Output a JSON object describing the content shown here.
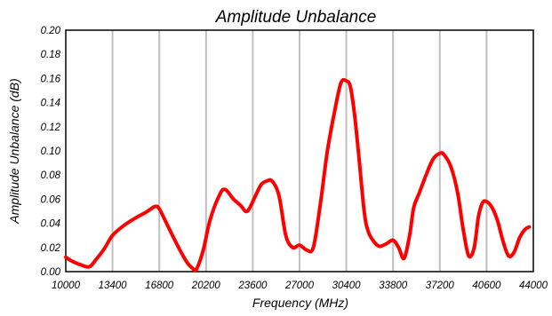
{
  "chart_data": {
    "type": "line",
    "title": "Amplitude Unbalance",
    "xlabel": "Frequency (MHz)",
    "ylabel": "Amplitude Unbalance (dB)",
    "xlim": [
      10000,
      44000
    ],
    "ylim": [
      0,
      0.2
    ],
    "x_ticks": [
      "10000",
      "13400",
      "16800",
      "20200",
      "23600",
      "27000",
      "30400",
      "33800",
      "37200",
      "40600",
      "44000"
    ],
    "y_ticks": [
      "0.00",
      "0.02",
      "0.04",
      "0.06",
      "0.08",
      "0.10",
      "0.12",
      "0.14",
      "0.16",
      "0.18",
      "0.20"
    ],
    "grid": "vertical",
    "legend": "none",
    "colors": {
      "line": "#ff0000",
      "grid": "#c0c0c0",
      "frame": "#000000"
    },
    "series": [
      {
        "x": [
          10000,
          10400,
          11000,
          11700,
          12200,
          12800,
          13400,
          14200,
          15000,
          15800,
          16200,
          16500,
          16800,
          17500,
          18200,
          18800,
          19200,
          19500,
          20000,
          20500,
          21200,
          21600,
          22200,
          22700,
          23200,
          23800,
          24200,
          24600,
          25000,
          25500,
          26000,
          26500,
          27000,
          27500,
          28000,
          28500,
          29000,
          29500,
          30000,
          30400,
          30700,
          31000,
          31300,
          31700,
          32000,
          32400,
          32800,
          33300,
          33800,
          34200,
          34600,
          35000,
          35300,
          35700,
          36200,
          36700,
          37200,
          37500,
          38000,
          38500,
          38900,
          39300,
          39700,
          40000,
          40300,
          40600,
          41000,
          41400,
          41800,
          42200,
          42600,
          43000,
          43400,
          43700
        ],
        "y": [
          0.012,
          0.009,
          0.006,
          0.004,
          0.01,
          0.019,
          0.03,
          0.038,
          0.044,
          0.049,
          0.052,
          0.054,
          0.052,
          0.036,
          0.02,
          0.008,
          0.003,
          0.002,
          0.018,
          0.043,
          0.064,
          0.068,
          0.06,
          0.055,
          0.05,
          0.063,
          0.072,
          0.075,
          0.075,
          0.063,
          0.03,
          0.02,
          0.022,
          0.018,
          0.02,
          0.055,
          0.098,
          0.13,
          0.156,
          0.158,
          0.153,
          0.13,
          0.097,
          0.05,
          0.033,
          0.025,
          0.021,
          0.023,
          0.026,
          0.02,
          0.011,
          0.03,
          0.053,
          0.065,
          0.08,
          0.093,
          0.098,
          0.097,
          0.087,
          0.065,
          0.035,
          0.013,
          0.02,
          0.045,
          0.057,
          0.058,
          0.053,
          0.042,
          0.025,
          0.013,
          0.016,
          0.028,
          0.035,
          0.037
        ]
      }
    ]
  }
}
